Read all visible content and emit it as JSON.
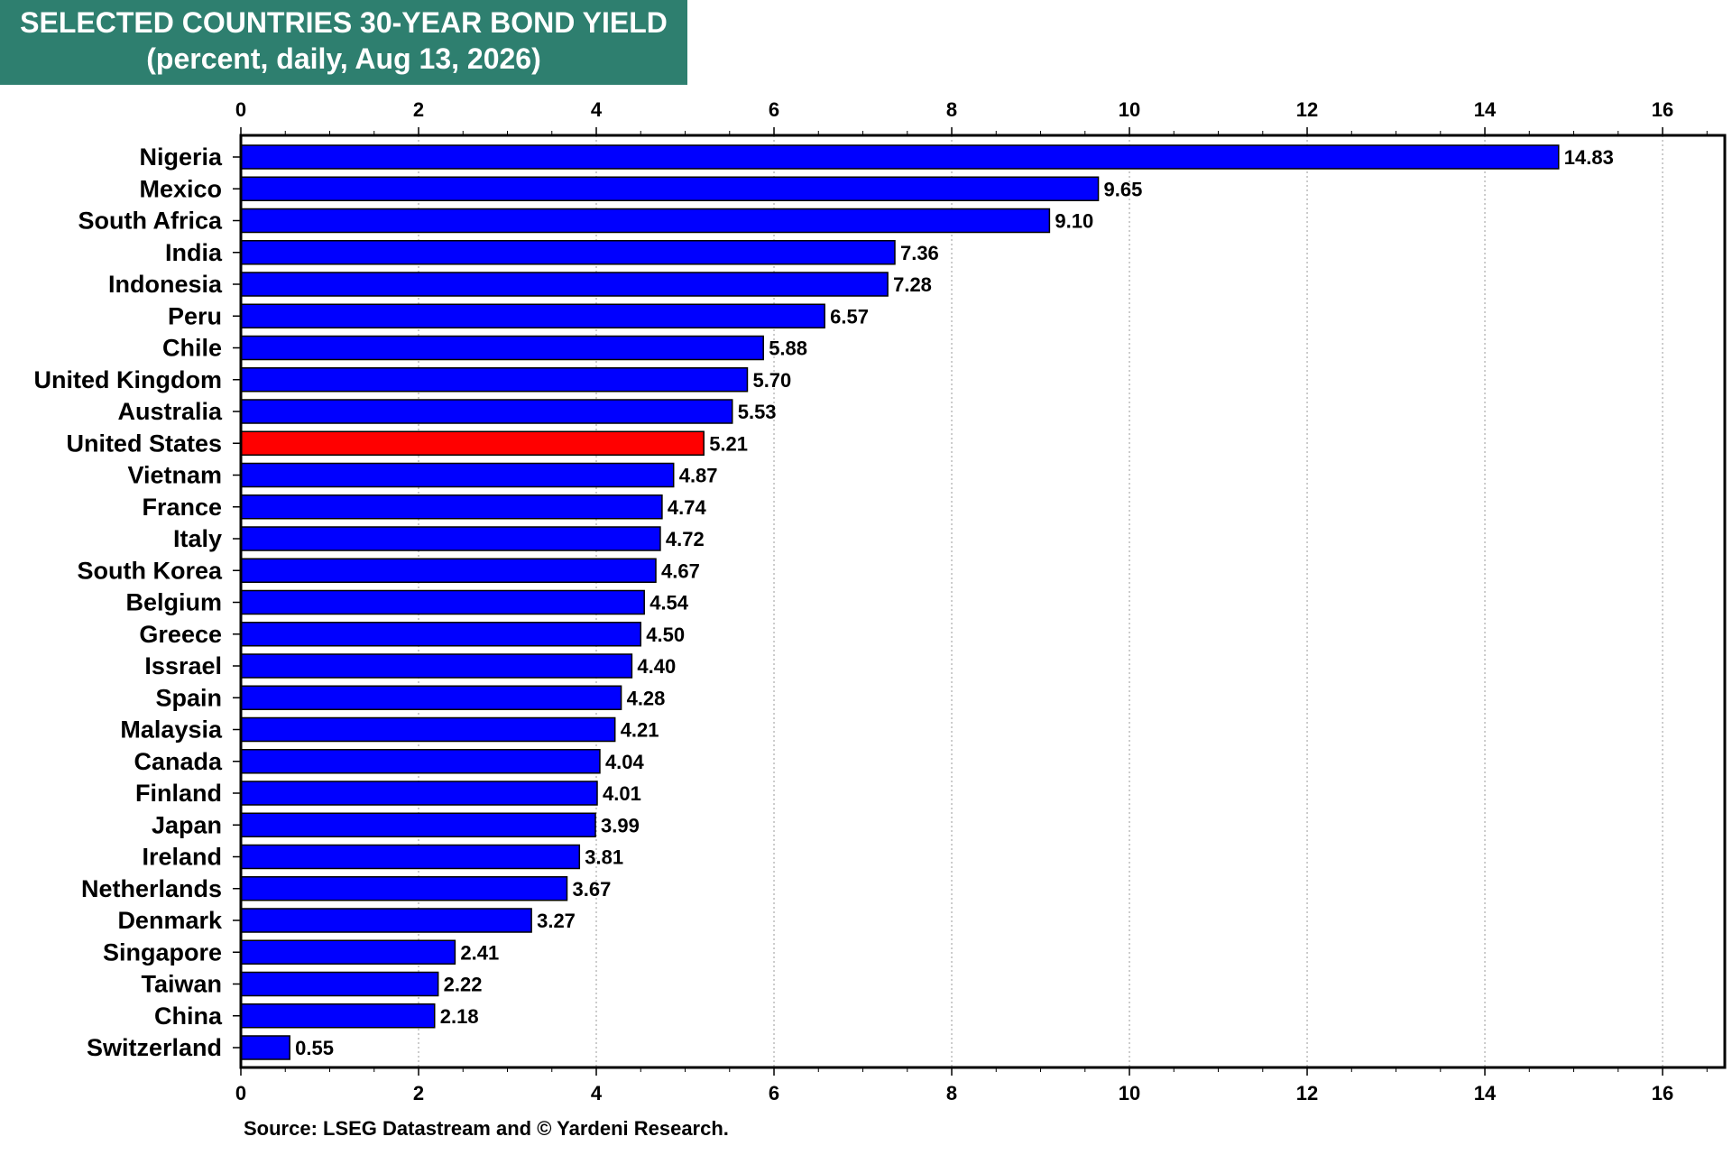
{
  "header": {
    "title": "SELECTED COUNTRIES 30-YEAR BOND YIELD",
    "subtitle": "(percent, daily, Aug 13, 2026)"
  },
  "footer": {
    "source": "Source: LSEG Datastream and © Yardeni Research."
  },
  "chart_data": {
    "type": "bar",
    "orientation": "horizontal",
    "title": "SELECTED COUNTRIES 30-YEAR BOND YIELD",
    "subtitle": "(percent, daily, Aug 13, 2026)",
    "xlabel": "",
    "ylabel": "",
    "xlim": [
      0,
      16.7
    ],
    "x_ticks": [
      0,
      2,
      4,
      6,
      8,
      10,
      12,
      14,
      16
    ],
    "axis_labels_position": "top and bottom",
    "grid": "vertical dotted",
    "legend": "none",
    "categories": [
      "Nigeria",
      "Mexico",
      "South Africa",
      "India",
      "Indonesia",
      "Peru",
      "Chile",
      "United Kingdom",
      "Australia",
      "United States",
      "Vietnam",
      "France",
      "Italy",
      "South Korea",
      "Belgium",
      "Greece",
      "Issrael",
      "Spain",
      "Malaysia",
      "Canada",
      "Finland",
      "Japan",
      "Ireland",
      "Netherlands",
      "Denmark",
      "Singapore",
      "Taiwan",
      "China",
      "Switzerland"
    ],
    "values": [
      14.83,
      9.65,
      9.1,
      7.36,
      7.28,
      6.57,
      5.88,
      5.7,
      5.53,
      5.21,
      4.87,
      4.74,
      4.72,
      4.67,
      4.54,
      4.5,
      4.4,
      4.28,
      4.21,
      4.04,
      4.01,
      3.99,
      3.81,
      3.67,
      3.27,
      2.41,
      2.22,
      2.18,
      0.55
    ],
    "data_labels": [
      "14.83",
      "9.65",
      "9.10",
      "7.36",
      "7.28",
      "6.57",
      "5.88",
      "5.70",
      "5.53",
      "5.21",
      "4.87",
      "4.74",
      "4.72",
      "4.67",
      "4.54",
      "4.50",
      "4.40",
      "4.28",
      "4.21",
      "4.04",
      "4.01",
      "3.99",
      "3.81",
      "3.67",
      "3.27",
      "2.41",
      "2.22",
      "2.18",
      "0.55"
    ],
    "highlight_category": "United States",
    "colors": {
      "bar": "#0000ff",
      "highlight_bar": "#ff0000",
      "bar_outline": "#000000",
      "title_background": "#2e7f6f",
      "title_text": "#ffffff"
    }
  }
}
